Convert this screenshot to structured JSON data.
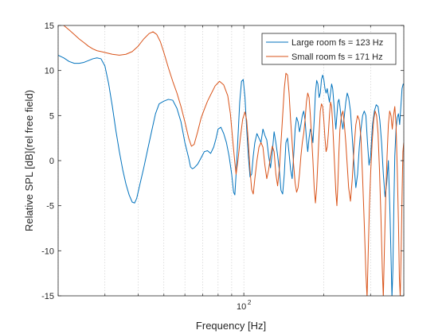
{
  "chart_data": {
    "type": "line",
    "xlabel": "Frequency [Hz]",
    "ylabel": "Relative SPL [dB](rel free field)",
    "x_scale": "log",
    "xlim": [
      20,
      400
    ],
    "ylim": [
      -15,
      15
    ],
    "yticks": [
      -15,
      -10,
      -5,
      0,
      5,
      10,
      15
    ],
    "xtick_label": "10",
    "xtick_label_exp": "2",
    "xtick_label_at": 100,
    "grid": "x-minor-dotted",
    "legend_position": "top-right",
    "series": [
      {
        "name": "Large room fs = 123 Hz",
        "color": "#0072BD",
        "points": [
          [
            20,
            11.7
          ],
          [
            21,
            11.4
          ],
          [
            22,
            11.0
          ],
          [
            23,
            10.8
          ],
          [
            24,
            10.8
          ],
          [
            25,
            10.9
          ],
          [
            26,
            11.1
          ],
          [
            27,
            11.3
          ],
          [
            28,
            11.4
          ],
          [
            29,
            11.3
          ],
          [
            30,
            10.5
          ],
          [
            31,
            8.5
          ],
          [
            32,
            6.0
          ],
          [
            33,
            3.3
          ],
          [
            34,
            1.0
          ],
          [
            35,
            -1.0
          ],
          [
            36,
            -2.6
          ],
          [
            37,
            -3.8
          ],
          [
            38,
            -4.6
          ],
          [
            38.8,
            -4.7
          ],
          [
            39.5,
            -4.2
          ],
          [
            40.5,
            -2.8
          ],
          [
            42,
            -0.8
          ],
          [
            43.5,
            1.3
          ],
          [
            45,
            3.3
          ],
          [
            46.5,
            5.2
          ],
          [
            48,
            6.3
          ],
          [
            50,
            6.6
          ],
          [
            52,
            6.8
          ],
          [
            54,
            6.7
          ],
          [
            56,
            5.8
          ],
          [
            58,
            4.3
          ],
          [
            60,
            2.0
          ],
          [
            62,
            0.3
          ],
          [
            63,
            -0.7
          ],
          [
            64,
            -0.9
          ],
          [
            65,
            -0.8
          ],
          [
            67,
            -0.4
          ],
          [
            69,
            0.3
          ],
          [
            71,
            1.0
          ],
          [
            73,
            1.1
          ],
          [
            75,
            0.8
          ],
          [
            77,
            1.5
          ],
          [
            78.5,
            2.4
          ],
          [
            80,
            3.5
          ],
          [
            82,
            3.7
          ],
          [
            84,
            3.0
          ],
          [
            86,
            2.0
          ],
          [
            88,
            0.5
          ],
          [
            90,
            -1.5
          ],
          [
            91.5,
            -3.5
          ],
          [
            92.5,
            -3.8
          ],
          [
            93.5,
            -1.5
          ],
          [
            95,
            2.5
          ],
          [
            96.5,
            6.5
          ],
          [
            98,
            8.8
          ],
          [
            99.5,
            9.0
          ],
          [
            101,
            7.0
          ],
          [
            102.5,
            3.5
          ],
          [
            104,
            0.5
          ],
          [
            105.5,
            -1.8
          ],
          [
            107,
            -1.5
          ],
          [
            108.5,
            0.5
          ],
          [
            110,
            2.0
          ],
          [
            112,
            3.0
          ],
          [
            114,
            2.5
          ],
          [
            116,
            2.0
          ],
          [
            118,
            3.5
          ],
          [
            120,
            2.8
          ],
          [
            122,
            2.3
          ],
          [
            124,
            0.5
          ],
          [
            126,
            -0.8
          ],
          [
            128,
            1.0
          ],
          [
            130,
            3.2
          ],
          [
            132,
            2.0
          ],
          [
            134,
            0.6
          ],
          [
            136,
            -1.0
          ],
          [
            138,
            -3.3
          ],
          [
            140,
            -3.7
          ],
          [
            142,
            -1.5
          ],
          [
            144,
            2.0
          ],
          [
            146,
            2.5
          ],
          [
            148,
            0.8
          ],
          [
            150,
            -1.0
          ],
          [
            152,
            -2.0
          ],
          [
            154,
            0.5
          ],
          [
            156,
            3.5
          ],
          [
            158,
            4.8
          ],
          [
            160,
            4.3
          ],
          [
            162,
            3.2
          ],
          [
            164,
            4.0
          ],
          [
            166,
            5.0
          ],
          [
            168,
            5.5
          ],
          [
            170,
            4.5
          ],
          [
            172,
            2.5
          ],
          [
            174,
            1.0
          ],
          [
            176,
            2.5
          ],
          [
            178,
            3.5
          ],
          [
            180,
            3.0
          ],
          [
            182,
            2.0
          ],
          [
            184,
            4.5
          ],
          [
            186,
            7.5
          ],
          [
            188,
            8.9
          ],
          [
            190,
            8.5
          ],
          [
            192,
            7.0
          ],
          [
            194,
            7.5
          ],
          [
            196,
            9.0
          ],
          [
            198,
            9.5
          ],
          [
            200,
            9.0
          ],
          [
            202,
            8.0
          ],
          [
            204,
            7.5
          ],
          [
            206,
            8.0
          ],
          [
            208,
            7.2
          ],
          [
            210,
            6.5
          ],
          [
            212,
            7.5
          ],
          [
            214,
            8.5
          ],
          [
            216,
            8.0
          ],
          [
            218,
            6.5
          ],
          [
            220,
            5.0
          ],
          [
            222,
            3.5
          ],
          [
            224,
            5.0
          ],
          [
            226,
            6.5
          ],
          [
            228,
            6.8
          ],
          [
            230,
            6.0
          ],
          [
            233,
            4.5
          ],
          [
            236,
            3.5
          ],
          [
            239,
            5.0
          ],
          [
            242,
            6.5
          ],
          [
            245,
            7.5
          ],
          [
            248,
            7.0
          ],
          [
            252,
            5.5
          ],
          [
            256,
            2.5
          ],
          [
            260,
            -0.5
          ],
          [
            264,
            -3.0
          ],
          [
            268,
            -1.5
          ],
          [
            272,
            1.5
          ],
          [
            276,
            3.5
          ],
          [
            280,
            5.0
          ],
          [
            284,
            5.5
          ],
          [
            288,
            5.0
          ],
          [
            292,
            2.0
          ],
          [
            296,
            -0.5
          ],
          [
            300,
            0.5
          ],
          [
            305,
            4.0
          ],
          [
            310,
            5.5
          ],
          [
            315,
            6.2
          ],
          [
            320,
            6.0
          ],
          [
            325,
            4.5
          ],
          [
            330,
            2.0
          ],
          [
            335,
            -1.5
          ],
          [
            340,
            -4.0
          ],
          [
            345,
            -2.5
          ],
          [
            350,
            0.0
          ],
          [
            355,
            -6.0
          ],
          [
            358,
            -10.5
          ],
          [
            361,
            -15.2
          ],
          [
            364,
            -12.0
          ],
          [
            367,
            -5.0
          ],
          [
            370,
            0.5
          ],
          [
            374,
            3.5
          ],
          [
            378,
            4.8
          ],
          [
            382,
            5.2
          ],
          [
            386,
            4.0
          ],
          [
            390,
            6.0
          ],
          [
            394,
            8.0
          ],
          [
            398,
            8.5
          ],
          [
            400,
            8.4
          ]
        ]
      },
      {
        "name": "Small room fs = 171 Hz",
        "color": "#D95319",
        "points": [
          [
            20,
            15.4
          ],
          [
            21,
            15.0
          ],
          [
            22,
            14.5
          ],
          [
            23,
            14.0
          ],
          [
            24,
            13.5
          ],
          [
            25,
            13.1
          ],
          [
            26,
            12.7
          ],
          [
            27,
            12.4
          ],
          [
            28,
            12.2
          ],
          [
            30,
            12.0
          ],
          [
            32,
            11.8
          ],
          [
            34,
            11.7
          ],
          [
            36,
            11.8
          ],
          [
            38,
            12.1
          ],
          [
            40,
            12.7
          ],
          [
            42,
            13.5
          ],
          [
            44,
            14.1
          ],
          [
            45.5,
            14.3
          ],
          [
            47,
            14.0
          ],
          [
            48.5,
            13.2
          ],
          [
            50,
            12.0
          ],
          [
            52,
            10.3
          ],
          [
            54,
            8.8
          ],
          [
            56,
            7.5
          ],
          [
            58,
            6.0
          ],
          [
            60,
            4.3
          ],
          [
            62,
            2.5
          ],
          [
            63.5,
            1.6
          ],
          [
            65,
            1.8
          ],
          [
            67,
            3.2
          ],
          [
            69,
            4.7
          ],
          [
            71,
            5.7
          ],
          [
            73,
            6.6
          ],
          [
            75,
            7.3
          ],
          [
            78,
            8.3
          ],
          [
            81,
            8.8
          ],
          [
            84,
            8.4
          ],
          [
            87,
            7.2
          ],
          [
            89,
            5.2
          ],
          [
            91,
            2.0
          ],
          [
            92.5,
            -0.2
          ],
          [
            93.5,
            -1.5
          ],
          [
            95,
            0.0
          ],
          [
            97,
            2.5
          ],
          [
            99,
            4.6
          ],
          [
            101,
            5.4
          ],
          [
            102.5,
            4.5
          ],
          [
            104,
            2.0
          ],
          [
            105.5,
            -1.0
          ],
          [
            107,
            -3.2
          ],
          [
            108.5,
            -3.7
          ],
          [
            110,
            -2.0
          ],
          [
            112,
            0.0
          ],
          [
            114,
            1.5
          ],
          [
            116,
            2.0
          ],
          [
            118,
            1.5
          ],
          [
            120,
            -0.5
          ],
          [
            122,
            -2.0
          ],
          [
            124,
            -1.0
          ],
          [
            126,
            0.5
          ],
          [
            128,
            1.6
          ],
          [
            130,
            1.0
          ],
          [
            132,
            -1.5
          ],
          [
            134,
            -2.8
          ],
          [
            136,
            -1.0
          ],
          [
            138,
            2.0
          ],
          [
            140,
            5.0
          ],
          [
            142,
            8.0
          ],
          [
            144,
            9.7
          ],
          [
            146,
            9.5
          ],
          [
            148,
            7.5
          ],
          [
            150,
            4.5
          ],
          [
            152,
            2.0
          ],
          [
            154,
            -0.5
          ],
          [
            156,
            -2.5
          ],
          [
            158,
            -3.5
          ],
          [
            160,
            -3.0
          ],
          [
            162,
            -1.5
          ],
          [
            164,
            0.5
          ],
          [
            166,
            2.0
          ],
          [
            168,
            3.0
          ],
          [
            170,
            4.5
          ],
          [
            172,
            6.5
          ],
          [
            174,
            7.5
          ],
          [
            176,
            7.0
          ],
          [
            178,
            5.0
          ],
          [
            180,
            2.5
          ],
          [
            182,
            0.0
          ],
          [
            184,
            -3.0
          ],
          [
            186,
            -4.7
          ],
          [
            188,
            -3.0
          ],
          [
            190,
            0.0
          ],
          [
            192,
            3.0
          ],
          [
            194,
            5.5
          ],
          [
            196,
            6.3
          ],
          [
            198,
            6.0
          ],
          [
            200,
            4.5
          ],
          [
            202,
            2.5
          ],
          [
            204,
            1.0
          ],
          [
            206,
            1.5
          ],
          [
            208,
            3.0
          ],
          [
            210,
            5.0
          ],
          [
            212,
            6.5
          ],
          [
            214,
            6.0
          ],
          [
            216,
            4.0
          ],
          [
            218,
            1.5
          ],
          [
            220,
            -1.0
          ],
          [
            222,
            -3.5
          ],
          [
            224,
            -5.0
          ],
          [
            226,
            -2.5
          ],
          [
            228,
            1.0
          ],
          [
            230,
            3.5
          ],
          [
            233,
            5.0
          ],
          [
            236,
            5.5
          ],
          [
            239,
            4.0
          ],
          [
            242,
            2.0
          ],
          [
            245,
            -0.5
          ],
          [
            248,
            -3.0
          ],
          [
            252,
            -4.5
          ],
          [
            256,
            -2.0
          ],
          [
            260,
            1.5
          ],
          [
            264,
            4.0
          ],
          [
            268,
            5.0
          ],
          [
            272,
            4.5
          ],
          [
            276,
            2.5
          ],
          [
            280,
            -2.0
          ],
          [
            284,
            -7.0
          ],
          [
            288,
            -12.5
          ],
          [
            291,
            -15.2
          ],
          [
            294,
            -10.0
          ],
          [
            297,
            -5.0
          ],
          [
            300,
            -1.5
          ],
          [
            304,
            2.0
          ],
          [
            308,
            4.5
          ],
          [
            312,
            5.5
          ],
          [
            316,
            5.0
          ],
          [
            320,
            3.0
          ],
          [
            324,
            -1.0
          ],
          [
            328,
            -6.0
          ],
          [
            332,
            -12.0
          ],
          [
            335,
            -15.2
          ],
          [
            338,
            -10.0
          ],
          [
            342,
            -4.0
          ],
          [
            346,
            0.5
          ],
          [
            350,
            4.0
          ],
          [
            354,
            5.5
          ],
          [
            358,
            5.0
          ],
          [
            362,
            3.5
          ],
          [
            366,
            5.0
          ],
          [
            370,
            6.0
          ],
          [
            374,
            4.0
          ],
          [
            378,
            -1.0
          ],
          [
            382,
            -7.0
          ],
          [
            385,
            -13.0
          ],
          [
            388,
            -15.2
          ],
          [
            391,
            -10.0
          ],
          [
            394,
            -4.0
          ],
          [
            397,
            1.0
          ],
          [
            400,
            2.0
          ]
        ]
      }
    ]
  }
}
